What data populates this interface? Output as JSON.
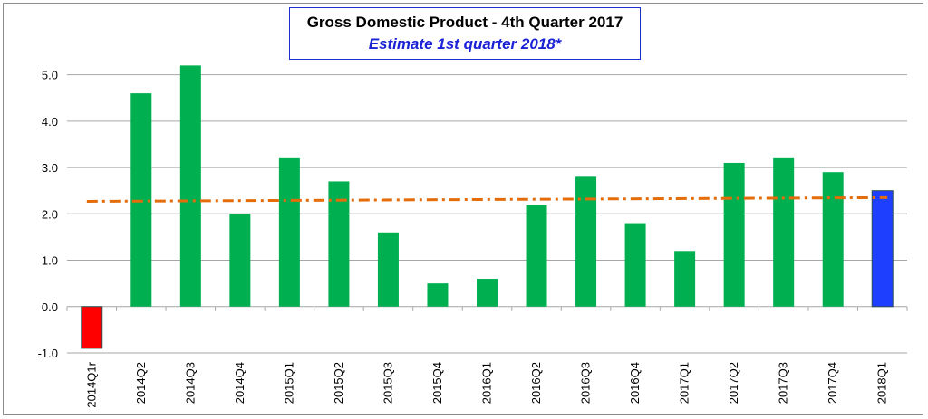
{
  "chart_data": {
    "type": "bar",
    "title": "Gross Domestic Product - 4th Quarter 2017",
    "subtitle": "Estimate 1st quarter 2018*",
    "xlabel": "",
    "ylabel": "",
    "ylim": [
      -1.0,
      5.5
    ],
    "yticks": [
      "-1.0",
      "0.0",
      "1.0",
      "2.0",
      "3.0",
      "4.0",
      "5.0"
    ],
    "grid": true,
    "legend": "none",
    "categories": [
      "2014Q1r",
      "2014Q2",
      "2014Q3",
      "2014Q4",
      "2015Q1",
      "2015Q2",
      "2015Q3",
      "2015Q4",
      "2016Q1",
      "2016Q2",
      "2016Q3",
      "2016Q4",
      "2017Q1",
      "2017Q2",
      "2017Q3",
      "2017Q4",
      "2018Q1"
    ],
    "values": [
      -0.9,
      4.6,
      5.2,
      2.0,
      3.2,
      2.7,
      1.6,
      0.5,
      0.6,
      2.2,
      2.8,
      1.8,
      1.2,
      3.1,
      3.2,
      2.9,
      2.5
    ],
    "bar_colors": [
      "#ff0000",
      "#00b050",
      "#00b050",
      "#00b050",
      "#00b050",
      "#00b050",
      "#00b050",
      "#00b050",
      "#00b050",
      "#00b050",
      "#00b050",
      "#00b050",
      "#00b050",
      "#00b050",
      "#00b050",
      "#00b050",
      "#1f3fff"
    ],
    "trendline": {
      "style": "dash-dot",
      "color": "#e46c0a",
      "start_value": 2.27,
      "end_value": 2.35
    }
  }
}
